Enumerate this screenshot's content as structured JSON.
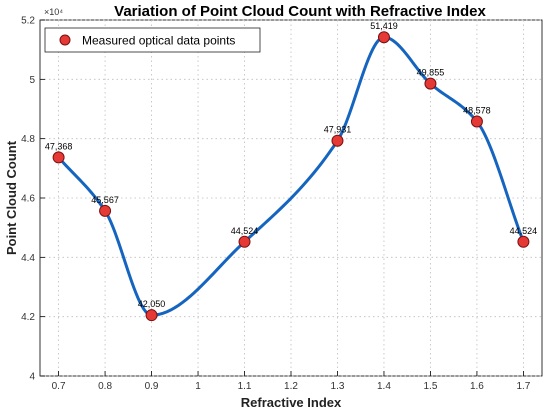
{
  "chart_data": {
    "type": "line",
    "title": "Variation of Point Cloud Count with Refractive Index",
    "xlabel": "Refractive Index",
    "ylabel": "Point Cloud Count",
    "y_exponent_label": "×10⁴",
    "x_ticks": [
      "0.7",
      "0.8",
      "0.9",
      "1",
      "1.1",
      "1.2",
      "1.3",
      "1.4",
      "1.5",
      "1.6",
      "1.7"
    ],
    "y_ticks": [
      "4",
      "4.2",
      "4.4",
      "4.6",
      "4.8",
      "5",
      "5.2"
    ],
    "xlim": [
      0.66,
      1.74
    ],
    "ylim": [
      40000,
      52000
    ],
    "grid": true,
    "legend_position": "top-left",
    "series": [
      {
        "name": "Measured optical data points",
        "x": [
          0.7,
          0.8,
          0.9,
          1.1,
          1.3,
          1.4,
          1.5,
          1.6,
          1.7
        ],
        "y": [
          47368,
          45567,
          42050,
          44524,
          47931,
          51419,
          49855,
          48578,
          44524
        ],
        "labels": [
          "47,368",
          "45,567",
          "42,050",
          "44,524",
          "47,931",
          "51,419",
          "49,855",
          "48,578",
          "44,524"
        ]
      }
    ],
    "colors": {
      "curve": "#1565C0",
      "marker_fill": "#E53935",
      "marker_edge": "#7a1010",
      "grid": "#bdbdbd"
    }
  }
}
